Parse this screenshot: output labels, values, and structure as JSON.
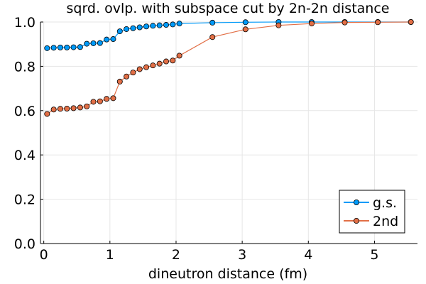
{
  "chart_data": {
    "type": "line",
    "title": "sqrd. ovlp. with subspace cut by 2n-2n distance",
    "xlabel": "dineutron distance (fm)",
    "ylabel": "",
    "xlim": [
      -0.05,
      5.65
    ],
    "ylim": [
      0,
      1.0
    ],
    "xticks": [
      0,
      1,
      2,
      3,
      4,
      5
    ],
    "yticks": [
      0.0,
      0.2,
      0.4,
      0.6,
      0.8,
      1.0
    ],
    "xtick_labels": [
      "0",
      "1",
      "2",
      "3",
      "4",
      "5"
    ],
    "ytick_labels": [
      "0.0",
      "0.2",
      "0.4",
      "0.6",
      "0.8",
      "1.0"
    ],
    "grid": true,
    "legend_position": "bottom-right",
    "series": [
      {
        "name": "g.s.",
        "color": "#009AF9",
        "x": [
          0.05,
          0.15,
          0.25,
          0.35,
          0.45,
          0.55,
          0.65,
          0.75,
          0.85,
          0.95,
          1.05,
          1.15,
          1.25,
          1.35,
          1.45,
          1.55,
          1.65,
          1.75,
          1.85,
          1.95,
          2.05,
          2.55,
          3.05,
          3.55,
          4.05,
          4.55,
          5.05,
          5.55
        ],
        "y": [
          0.882,
          0.884,
          0.885,
          0.885,
          0.886,
          0.887,
          0.902,
          0.904,
          0.905,
          0.921,
          0.923,
          0.958,
          0.968,
          0.972,
          0.976,
          0.98,
          0.983,
          0.985,
          0.987,
          0.989,
          0.993,
          0.997,
          0.999,
          1.0,
          1.0,
          1.0,
          1.0,
          1.0
        ]
      },
      {
        "name": "2nd",
        "color": "#E26F46",
        "x": [
          0.05,
          0.15,
          0.25,
          0.35,
          0.45,
          0.55,
          0.65,
          0.75,
          0.85,
          0.95,
          1.05,
          1.15,
          1.25,
          1.35,
          1.45,
          1.55,
          1.65,
          1.75,
          1.85,
          1.95,
          2.05,
          2.55,
          3.05,
          3.55,
          4.05,
          4.55,
          5.05,
          5.55
        ],
        "y": [
          0.585,
          0.605,
          0.608,
          0.609,
          0.611,
          0.614,
          0.619,
          0.64,
          0.642,
          0.653,
          0.656,
          0.731,
          0.754,
          0.772,
          0.787,
          0.796,
          0.804,
          0.812,
          0.822,
          0.826,
          0.848,
          0.932,
          0.967,
          0.985,
          0.993,
          0.998,
          0.999,
          1.0
        ]
      }
    ]
  }
}
